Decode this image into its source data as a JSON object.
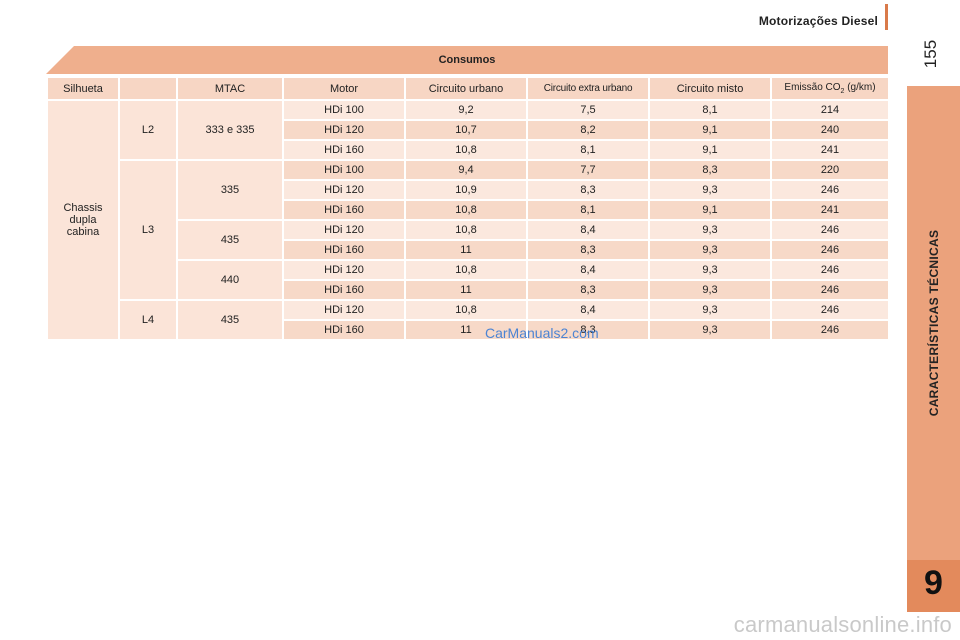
{
  "header": {
    "title": "Motorizações Diesel"
  },
  "page_number": "155",
  "side_tab": {
    "label": "CARACTERÍSTICAS TÉCNICAS",
    "chapter": "9"
  },
  "table": {
    "caption": "Consumos",
    "columns": [
      "Silhueta",
      "MTAC",
      "Motor",
      "Circuito urbano",
      "Circuito extra urbano",
      "Circuito misto",
      "Emissão CO",
      "2",
      " (g/km)"
    ],
    "silhueta": [
      "Chassis",
      "dupla",
      "cabina"
    ],
    "lengths": [
      "L2",
      "L3",
      "L4"
    ],
    "mtac": [
      "333 e 335",
      "335",
      "435",
      "440",
      "435"
    ],
    "rows": [
      {
        "motor": "HDi 100",
        "urbano": "9,2",
        "extra": "7,5",
        "misto": "8,1",
        "co2": "214"
      },
      {
        "motor": "HDi 120",
        "urbano": "10,7",
        "extra": "8,2",
        "misto": "9,1",
        "co2": "240"
      },
      {
        "motor": "HDi 160",
        "urbano": "10,8",
        "extra": "8,1",
        "misto": "9,1",
        "co2": "241"
      },
      {
        "motor": "HDi 100",
        "urbano": "9,4",
        "extra": "7,7",
        "misto": "8,3",
        "co2": "220"
      },
      {
        "motor": "HDi 120",
        "urbano": "10,9",
        "extra": "8,3",
        "misto": "9,3",
        "co2": "246"
      },
      {
        "motor": "HDi 160",
        "urbano": "10,8",
        "extra": "8,1",
        "misto": "9,1",
        "co2": "241"
      },
      {
        "motor": "HDi 120",
        "urbano": "10,8",
        "extra": "8,4",
        "misto": "9,3",
        "co2": "246"
      },
      {
        "motor": "HDi 160",
        "urbano": "11",
        "extra": "8,3",
        "misto": "9,3",
        "co2": "246"
      },
      {
        "motor": "HDi 120",
        "urbano": "10,8",
        "extra": "8,4",
        "misto": "9,3",
        "co2": "246"
      },
      {
        "motor": "HDi 160",
        "urbano": "11",
        "extra": "8,3",
        "misto": "9,3",
        "co2": "246"
      },
      {
        "motor": "HDi 120",
        "urbano": "10,8",
        "extra": "8,4",
        "misto": "9,3",
        "co2": "246"
      },
      {
        "motor": "HDi 160",
        "urbano": "11",
        "extra": "8,3",
        "misto": "9,3",
        "co2": "246"
      }
    ]
  },
  "watermark": "CarManuals2.com",
  "footer_watermark": "carmanualsonline.info",
  "colors": {
    "accent": "#e38a5c",
    "side_tab": "#eba27c",
    "band": "#efaf8d",
    "watermark": "#3a7bd5"
  }
}
